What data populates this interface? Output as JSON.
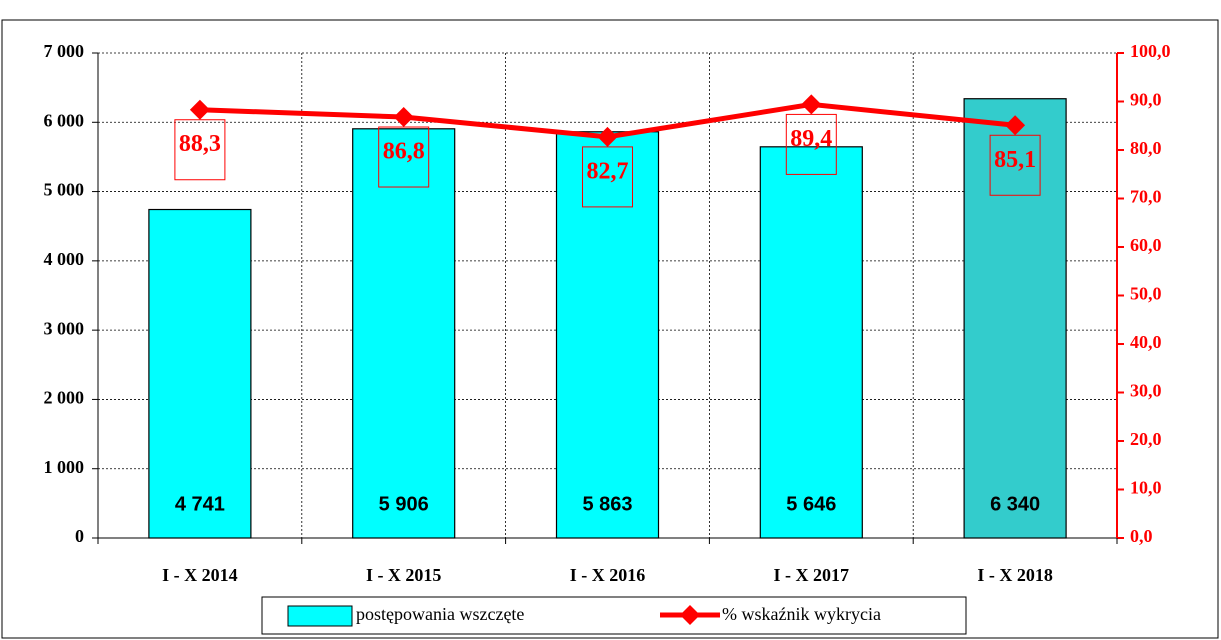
{
  "chart_data": {
    "type": "bar_line",
    "categories": [
      "I - X 2014",
      "I - X 2015",
      "I - X 2016",
      "I - X 2017",
      "I - X 2018"
    ],
    "series": [
      {
        "name": "postępowania wszczęte",
        "type": "bar",
        "color": "#00ffff",
        "colors": [
          "#00ffff",
          "#00ffff",
          "#00ffff",
          "#00ffff",
          "#33cccc"
        ],
        "values": [
          4741,
          5906,
          5863,
          5646,
          6340
        ],
        "value_labels": [
          "4 741",
          "5 906",
          "5 863",
          "5 646",
          "6 340"
        ]
      },
      {
        "name": "% wskaźnik wykrycia",
        "type": "line",
        "axis": "y2",
        "color": "#ff0000",
        "values": [
          88.3,
          86.8,
          82.7,
          89.4,
          85.1
        ],
        "value_labels": [
          "88,3",
          "86,8",
          "82,7",
          "89,4",
          "85,1"
        ]
      }
    ],
    "ylim": [
      0,
      7000
    ],
    "yticks": [
      0,
      {
        "value": 1000,
        "label": "1 000"
      },
      {
        "value": 2000,
        "label": "2 000"
      },
      {
        "value": 3000,
        "label": "3 000"
      },
      {
        "value": 4000,
        "label": "4 000"
      },
      {
        "value": 5000,
        "label": "5 000"
      },
      {
        "value": 6000,
        "label": "6 000"
      },
      {
        "value": 7000,
        "label": "7 000"
      }
    ],
    "y2lim": [
      0,
      100
    ],
    "y2ticks": [
      {
        "value": 0,
        "label": "0,0"
      },
      {
        "value": 10,
        "label": "10,0"
      },
      {
        "value": 20,
        "label": "20,0"
      },
      {
        "value": 30,
        "label": "30,0"
      },
      {
        "value": 40,
        "label": "40,0"
      },
      {
        "value": 50,
        "label": "50,0"
      },
      {
        "value": 60,
        "label": "60,0"
      },
      {
        "value": 70,
        "label": "70,0"
      },
      {
        "value": 80,
        "label": "80,0"
      },
      {
        "value": 90,
        "label": "90,0"
      },
      {
        "value": 100,
        "label": "100,0"
      }
    ],
    "grid": true,
    "legend": "bottom"
  }
}
